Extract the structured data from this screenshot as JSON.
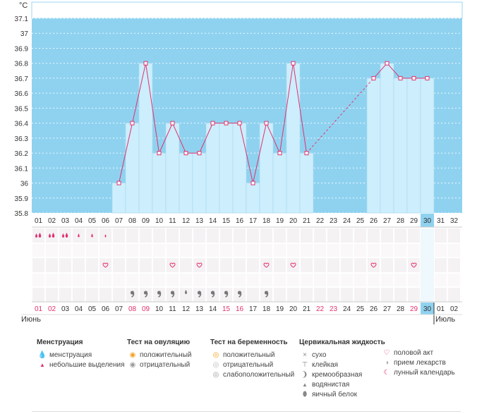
{
  "chart_data": {
    "type": "bar",
    "y_unit": "°C",
    "ylim": [
      35.8,
      37.1
    ],
    "y_ticks": [
      "37.1",
      "37",
      "36.9",
      "36.8",
      "36.7",
      "36.6",
      "36.5",
      "36.4",
      "36.3",
      "36.2",
      "36.1",
      "36",
      "35.9",
      "35.8"
    ],
    "cycle_days": [
      "01",
      "02",
      "03",
      "04",
      "05",
      "06",
      "07",
      "08",
      "09",
      "10",
      "11",
      "12",
      "13",
      "14",
      "15",
      "16",
      "17",
      "18",
      "19",
      "20",
      "21",
      "22",
      "23",
      "24",
      "25",
      "26",
      "27",
      "28",
      "29",
      "30",
      "31",
      "32"
    ],
    "values": [
      null,
      null,
      null,
      null,
      null,
      null,
      36.0,
      36.4,
      36.8,
      36.2,
      36.4,
      36.2,
      36.2,
      36.4,
      36.4,
      36.4,
      36.0,
      36.4,
      36.2,
      36.8,
      36.2,
      null,
      null,
      null,
      null,
      36.7,
      36.8,
      36.7,
      36.7,
      36.7,
      null,
      null
    ],
    "current_day": "30",
    "calendar_days": [
      "01",
      "02",
      "03",
      "04",
      "05",
      "06",
      "07",
      "08",
      "09",
      "10",
      "11",
      "12",
      "13",
      "14",
      "15",
      "16",
      "17",
      "18",
      "19",
      "20",
      "21",
      "22",
      "23",
      "24",
      "25",
      "26",
      "27",
      "28",
      "29",
      "30",
      "01",
      "02"
    ],
    "weekend_days": [
      "01",
      "02",
      "08",
      "09",
      "15",
      "16",
      "22",
      "23",
      "29"
    ],
    "months": [
      "Июнь",
      "Июль"
    ],
    "menstruation": [
      3,
      3,
      3,
      2,
      2,
      1,
      0,
      0,
      0,
      0,
      0,
      0,
      0,
      0,
      0,
      0,
      0,
      0,
      0,
      0,
      0,
      0,
      0,
      0,
      0,
      0,
      0,
      0,
      0,
      0,
      0,
      0
    ],
    "intercourse_days": [
      "06",
      "11",
      "13",
      "18",
      "20",
      "26",
      "29"
    ],
    "cervical_fluid": [
      "",
      "",
      "",
      "",
      "",
      "",
      "",
      "cream",
      "cream",
      "cream",
      "cream",
      "water",
      "cream",
      "cream",
      "cream",
      "cream",
      "",
      "cream",
      "",
      "",
      "",
      "",
      "",
      "",
      "",
      "",
      "",
      "",
      "",
      "",
      "",
      ""
    ]
  },
  "colors": {
    "sky": "#8fd2f0",
    "bar": "#cdeefc",
    "bar_edge": "#a8d8f0",
    "line": "#e2316e",
    "weekend": "#e2316e"
  },
  "legend": {
    "menstruation": {
      "title": "Менструация",
      "items": [
        {
          "icon": "heavy-drop-icon",
          "label": "менструация"
        },
        {
          "icon": "light-drop-icon",
          "label": "небольшие выделения"
        }
      ]
    },
    "ovulation": {
      "title": "Тест на овуляцию",
      "items": [
        {
          "icon": "positive-test-icon",
          "label": "положительный"
        },
        {
          "icon": "negative-test-icon",
          "label": "отрицательный"
        }
      ]
    },
    "pregnancy": {
      "title": "Тест на беременность",
      "items": [
        {
          "icon": "positive-test-icon",
          "label": "положительный"
        },
        {
          "icon": "negative-test-icon",
          "label": "отрицательный"
        },
        {
          "icon": "weak-positive-test-icon",
          "label": "слабоположительный"
        }
      ]
    },
    "cervical": {
      "title": "Цервикальная жидкость",
      "items": [
        {
          "icon": "dry-icon",
          "label": "сухо"
        },
        {
          "icon": "sticky-icon",
          "label": "клейкая"
        },
        {
          "icon": "creamy-icon",
          "label": "кремообразная"
        },
        {
          "icon": "watery-icon",
          "label": "водянистая"
        },
        {
          "icon": "egg-white-icon",
          "label": "яичный белок"
        }
      ]
    },
    "other": {
      "items": [
        {
          "icon": "heart-icon",
          "label": "половой акт"
        },
        {
          "icon": "pill-icon",
          "label": "прием лекарств"
        },
        {
          "icon": "moon-icon",
          "label": "лунный календарь"
        }
      ]
    }
  }
}
